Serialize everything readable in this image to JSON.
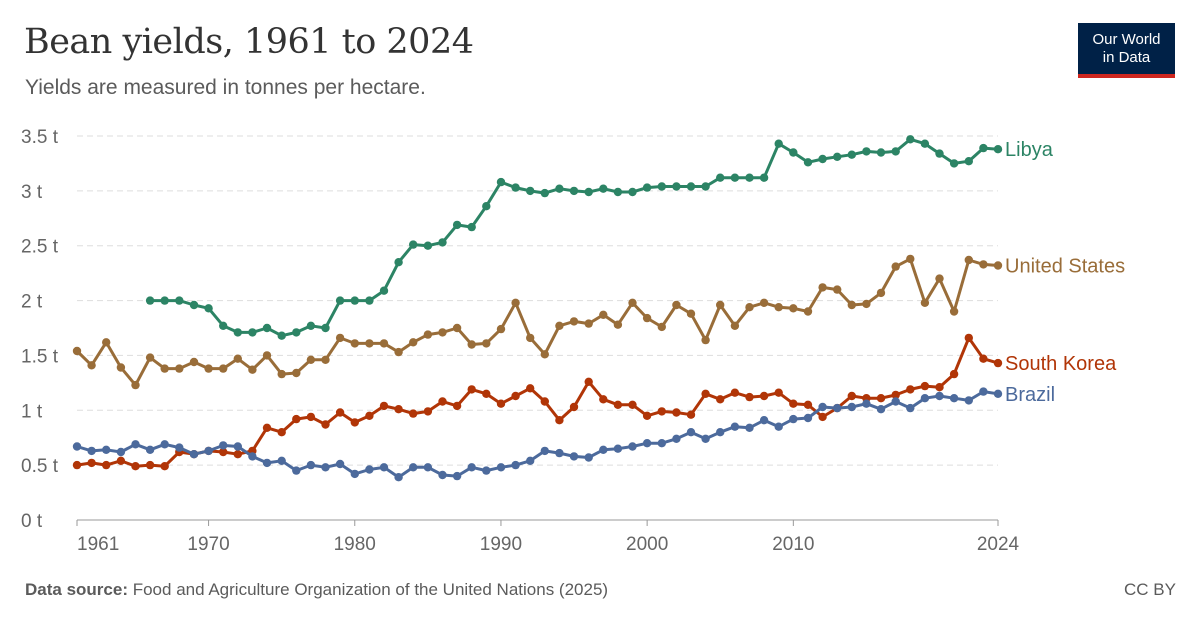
{
  "header": {
    "title": "Bean yields, 1961 to 2024",
    "subtitle": "Yields are measured in tonnes per hectare.",
    "logo_line1": "Our World",
    "logo_line2": "in Data"
  },
  "footer": {
    "source_label": "Data source:",
    "source_text": "Food and Agriculture Organization of the United Nations (2025)",
    "license": "CC BY"
  },
  "colors": {
    "Libya": "#2c8465",
    "United States": "#996d39",
    "South Korea": "#b13507",
    "Brazil": "#4c6a9c",
    "grid": "#dddddd",
    "axis": "#999999"
  },
  "chart_data": {
    "type": "line",
    "title": "Bean yields, 1961 to 2024",
    "subtitle": "Yields are measured in tonnes per hectare.",
    "xlabel": "",
    "ylabel": "",
    "xlim": [
      1961,
      2024
    ],
    "ylim": [
      0,
      3.5
    ],
    "x_ticks": [
      1961,
      1970,
      1980,
      1990,
      2000,
      2010,
      2024
    ],
    "y_ticks": [
      {
        "value": 0,
        "label": "0 t"
      },
      {
        "value": 0.5,
        "label": "0.5 t"
      },
      {
        "value": 1,
        "label": "1 t"
      },
      {
        "value": 1.5,
        "label": "1.5 t"
      },
      {
        "value": 2,
        "label": "2 t"
      },
      {
        "value": 2.5,
        "label": "2.5 t"
      },
      {
        "value": 3,
        "label": "3 t"
      },
      {
        "value": 3.5,
        "label": "3.5 t"
      }
    ],
    "grid": true,
    "legend": "line-end labels",
    "series": [
      {
        "name": "Libya",
        "x_start": 1966,
        "values": [
          2.0,
          2.0,
          2.0,
          1.96,
          1.93,
          1.77,
          1.71,
          1.71,
          1.75,
          1.68,
          1.71,
          1.77,
          1.75,
          2.0,
          2.0,
          2.0,
          2.09,
          2.35,
          2.51,
          2.5,
          2.53,
          2.69,
          2.67,
          2.86,
          3.08,
          3.03,
          3.0,
          2.98,
          3.02,
          3.0,
          2.99,
          3.02,
          2.99,
          2.99,
          3.03,
          3.04,
          3.04,
          3.04,
          3.04,
          3.12,
          3.12,
          3.12,
          3.12,
          3.43,
          3.35,
          3.26,
          3.29,
          3.31,
          3.33,
          3.36,
          3.35,
          3.36,
          3.47,
          3.43,
          3.34,
          3.25,
          3.27,
          3.39,
          3.38
        ]
      },
      {
        "name": "United States",
        "x_start": 1961,
        "values": [
          1.54,
          1.41,
          1.62,
          1.39,
          1.23,
          1.48,
          1.38,
          1.38,
          1.44,
          1.38,
          1.38,
          1.47,
          1.37,
          1.5,
          1.33,
          1.34,
          1.46,
          1.46,
          1.66,
          1.61,
          1.61,
          1.61,
          1.53,
          1.62,
          1.69,
          1.71,
          1.75,
          1.6,
          1.61,
          1.74,
          1.98,
          1.66,
          1.51,
          1.77,
          1.81,
          1.79,
          1.87,
          1.78,
          1.98,
          1.84,
          1.76,
          1.96,
          1.88,
          1.64,
          1.96,
          1.77,
          1.94,
          1.98,
          1.94,
          1.93,
          1.9,
          2.12,
          2.1,
          1.96,
          1.97,
          2.07,
          2.31,
          2.38,
          1.98,
          2.2,
          1.9,
          2.37,
          2.33,
          2.32
        ]
      },
      {
        "name": "South Korea",
        "x_start": 1961,
        "values": [
          0.5,
          0.52,
          0.5,
          0.54,
          0.49,
          0.5,
          0.49,
          0.62,
          0.6,
          0.63,
          0.62,
          0.6,
          0.63,
          0.84,
          0.8,
          0.92,
          0.94,
          0.87,
          0.98,
          0.89,
          0.95,
          1.04,
          1.01,
          0.97,
          0.99,
          1.08,
          1.04,
          1.19,
          1.15,
          1.06,
          1.13,
          1.2,
          1.08,
          0.91,
          1.03,
          1.26,
          1.1,
          1.05,
          1.05,
          0.95,
          0.99,
          0.98,
          0.96,
          1.15,
          1.1,
          1.16,
          1.12,
          1.13,
          1.16,
          1.06,
          1.05,
          0.94,
          1.02,
          1.13,
          1.11,
          1.11,
          1.14,
          1.19,
          1.22,
          1.21,
          1.33,
          1.66,
          1.47,
          1.43
        ]
      },
      {
        "name": "Brazil",
        "x_start": 1961,
        "values": [
          0.67,
          0.63,
          0.64,
          0.62,
          0.69,
          0.64,
          0.69,
          0.66,
          0.6,
          0.63,
          0.68,
          0.67,
          0.58,
          0.52,
          0.54,
          0.45,
          0.5,
          0.48,
          0.51,
          0.42,
          0.46,
          0.48,
          0.39,
          0.48,
          0.48,
          0.41,
          0.4,
          0.48,
          0.45,
          0.48,
          0.5,
          0.54,
          0.63,
          0.61,
          0.58,
          0.57,
          0.64,
          0.65,
          0.67,
          0.7,
          0.7,
          0.74,
          0.8,
          0.74,
          0.8,
          0.85,
          0.84,
          0.91,
          0.85,
          0.92,
          0.93,
          1.03,
          1.02,
          1.03,
          1.06,
          1.01,
          1.08,
          1.02,
          1.11,
          1.13,
          1.11,
          1.09,
          1.17,
          1.15
        ]
      }
    ]
  }
}
